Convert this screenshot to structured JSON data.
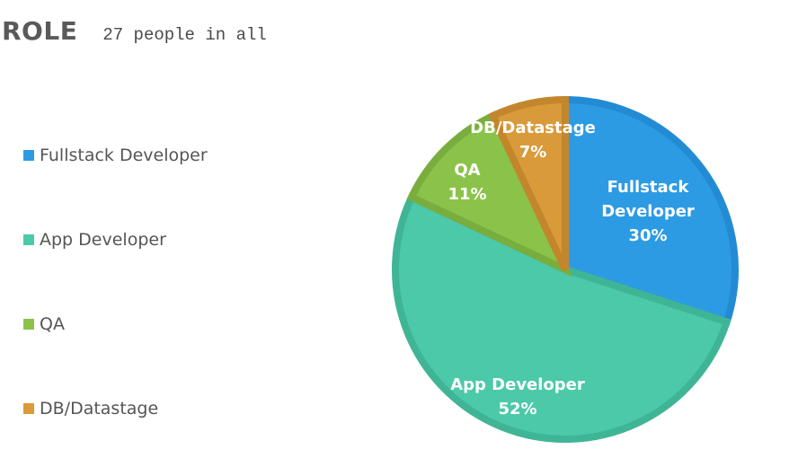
{
  "header": {
    "title": "ROLE",
    "subtitle": "27 people in all"
  },
  "chart_data": {
    "type": "pie",
    "legend_position": "left",
    "slices": [
      {
        "label": "Fullstack Developer",
        "label_lines": [
          "Fullstack",
          "Developer"
        ],
        "value": 30,
        "value_label": "30%",
        "color": "#2d9be3",
        "border": "#238bd4"
      },
      {
        "label": "App Developer",
        "label_lines": [
          "App Developer"
        ],
        "value": 52,
        "value_label": "52%",
        "color": "#4bc9a8",
        "border": "#3fb596"
      },
      {
        "label": "QA",
        "label_lines": [
          "QA"
        ],
        "value": 11,
        "value_label": "11%",
        "color": "#8bc34a",
        "border": "#79ad3e"
      },
      {
        "label": "DB/Datastage",
        "label_lines": [
          "DB/Datastage"
        ],
        "value": 7,
        "value_label": "7%",
        "color": "#d99a3a",
        "border": "#c4862c"
      }
    ]
  }
}
